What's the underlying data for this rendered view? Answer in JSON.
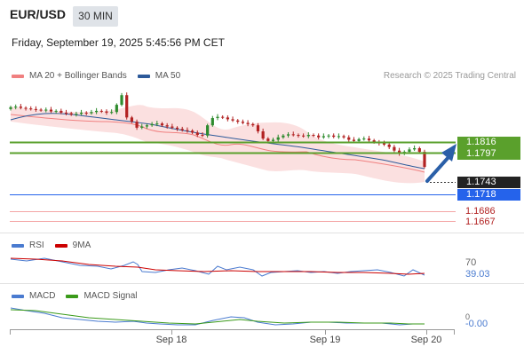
{
  "header": {
    "pair": "EUR/USD",
    "timeframe": "30 MIN",
    "datetime": "Friday, September 19, 2025 5:45:56 PM CET"
  },
  "credit": "Research © 2025 Trading Central",
  "legend": {
    "main": [
      {
        "label": "MA 20 + Bollinger Bands",
        "color": "#f08080"
      },
      {
        "label": "MA 50",
        "color": "#2d5a9a"
      }
    ],
    "rsi": [
      {
        "label": "RSI",
        "color": "#4a7bd0"
      },
      {
        "label": "9MA",
        "color": "#cc0000"
      }
    ],
    "macd": [
      {
        "label": "MACD",
        "color": "#4a7bd0"
      },
      {
        "label": "MACD Signal",
        "color": "#3a9a1a"
      }
    ]
  },
  "colors": {
    "up": "#2e8b2e",
    "down": "#b22222",
    "bollinger_fill": "#fbe0e0",
    "ma20": "#f08080",
    "ma50": "#2d5a9a",
    "resistance": "#5aa02c",
    "support": "#2563eb",
    "minor": "#f4a6a6",
    "arrow": "#2a5fa8"
  },
  "chart_data": [
    {
      "type": "candlestick",
      "title": "EUR/USD 30 MIN",
      "x_ticks": [
        "Sep 18",
        "Sep 19",
        "Sep 20"
      ],
      "price_levels": [
        {
          "value": "1.1816",
          "kind": "resistance"
        },
        {
          "value": "1.1797",
          "kind": "resistance"
        },
        {
          "value": "1.1743",
          "kind": "last_price"
        },
        {
          "value": "1.1718",
          "kind": "support"
        },
        {
          "value": "1.1686",
          "kind": "minor_support"
        },
        {
          "value": "1.1667",
          "kind": "minor_support"
        }
      ],
      "ylim": [
        1.164,
        1.188
      ],
      "series": [
        {
          "name": "price",
          "closes": [
            1.1842,
            1.1843,
            1.1841,
            1.184,
            1.1839,
            1.1838,
            1.1837,
            1.1838,
            1.1835,
            1.1836,
            1.1833,
            1.1832,
            1.183,
            1.1831,
            1.1833,
            1.1832,
            1.1834,
            1.1836,
            1.1835,
            1.1833,
            1.1834,
            1.1846,
            1.1862,
            1.1825,
            1.1818,
            1.1808,
            1.181,
            1.1812,
            1.1814,
            1.1815,
            1.1812,
            1.181,
            1.1808,
            1.1806,
            1.1804,
            1.1803,
            1.18,
            1.1796,
            1.1795,
            1.1812,
            1.1824,
            1.1826,
            1.1825,
            1.1822,
            1.182,
            1.1818,
            1.1816,
            1.1814,
            1.1812,
            1.1802,
            1.179,
            1.1786,
            1.1788,
            1.1792,
            1.1795,
            1.1797,
            1.1796,
            1.1795,
            1.1794,
            1.1796,
            1.1795,
            1.1792,
            1.1794,
            1.1795,
            1.1793,
            1.1794,
            1.1792,
            1.1788,
            1.1786,
            1.1789,
            1.179,
            1.1787,
            1.1784,
            1.1782,
            1.178,
            1.1776,
            1.177,
            1.1765,
            1.1768,
            1.1772,
            1.1774,
            1.1768,
            1.1743
          ]
        },
        {
          "name": "MA 50",
          "values": [
            1.1832,
            1.1836,
            1.1838,
            1.1838,
            1.1836,
            1.1834,
            1.1831,
            1.1829,
            1.1826,
            1.1822,
            1.1819,
            1.1816,
            1.1814,
            1.1812,
            1.181,
            1.1808,
            1.1804,
            1.1801,
            1.1799,
            1.1798,
            1.1796,
            1.1795,
            1.1793,
            1.1791,
            1.1788,
            1.1785,
            1.1781,
            1.1778,
            1.1774
          ]
        }
      ]
    },
    {
      "type": "line",
      "title": "RSI",
      "series": [
        {
          "name": "RSI",
          "last": "39.03"
        },
        {
          "name": "9MA"
        }
      ],
      "levels": [
        "70",
        "39.03"
      ]
    },
    {
      "type": "line",
      "title": "MACD",
      "series": [
        {
          "name": "MACD",
          "last": "-0.00"
        },
        {
          "name": "MACD Signal"
        }
      ],
      "levels": [
        "0",
        "-0.00"
      ]
    }
  ]
}
